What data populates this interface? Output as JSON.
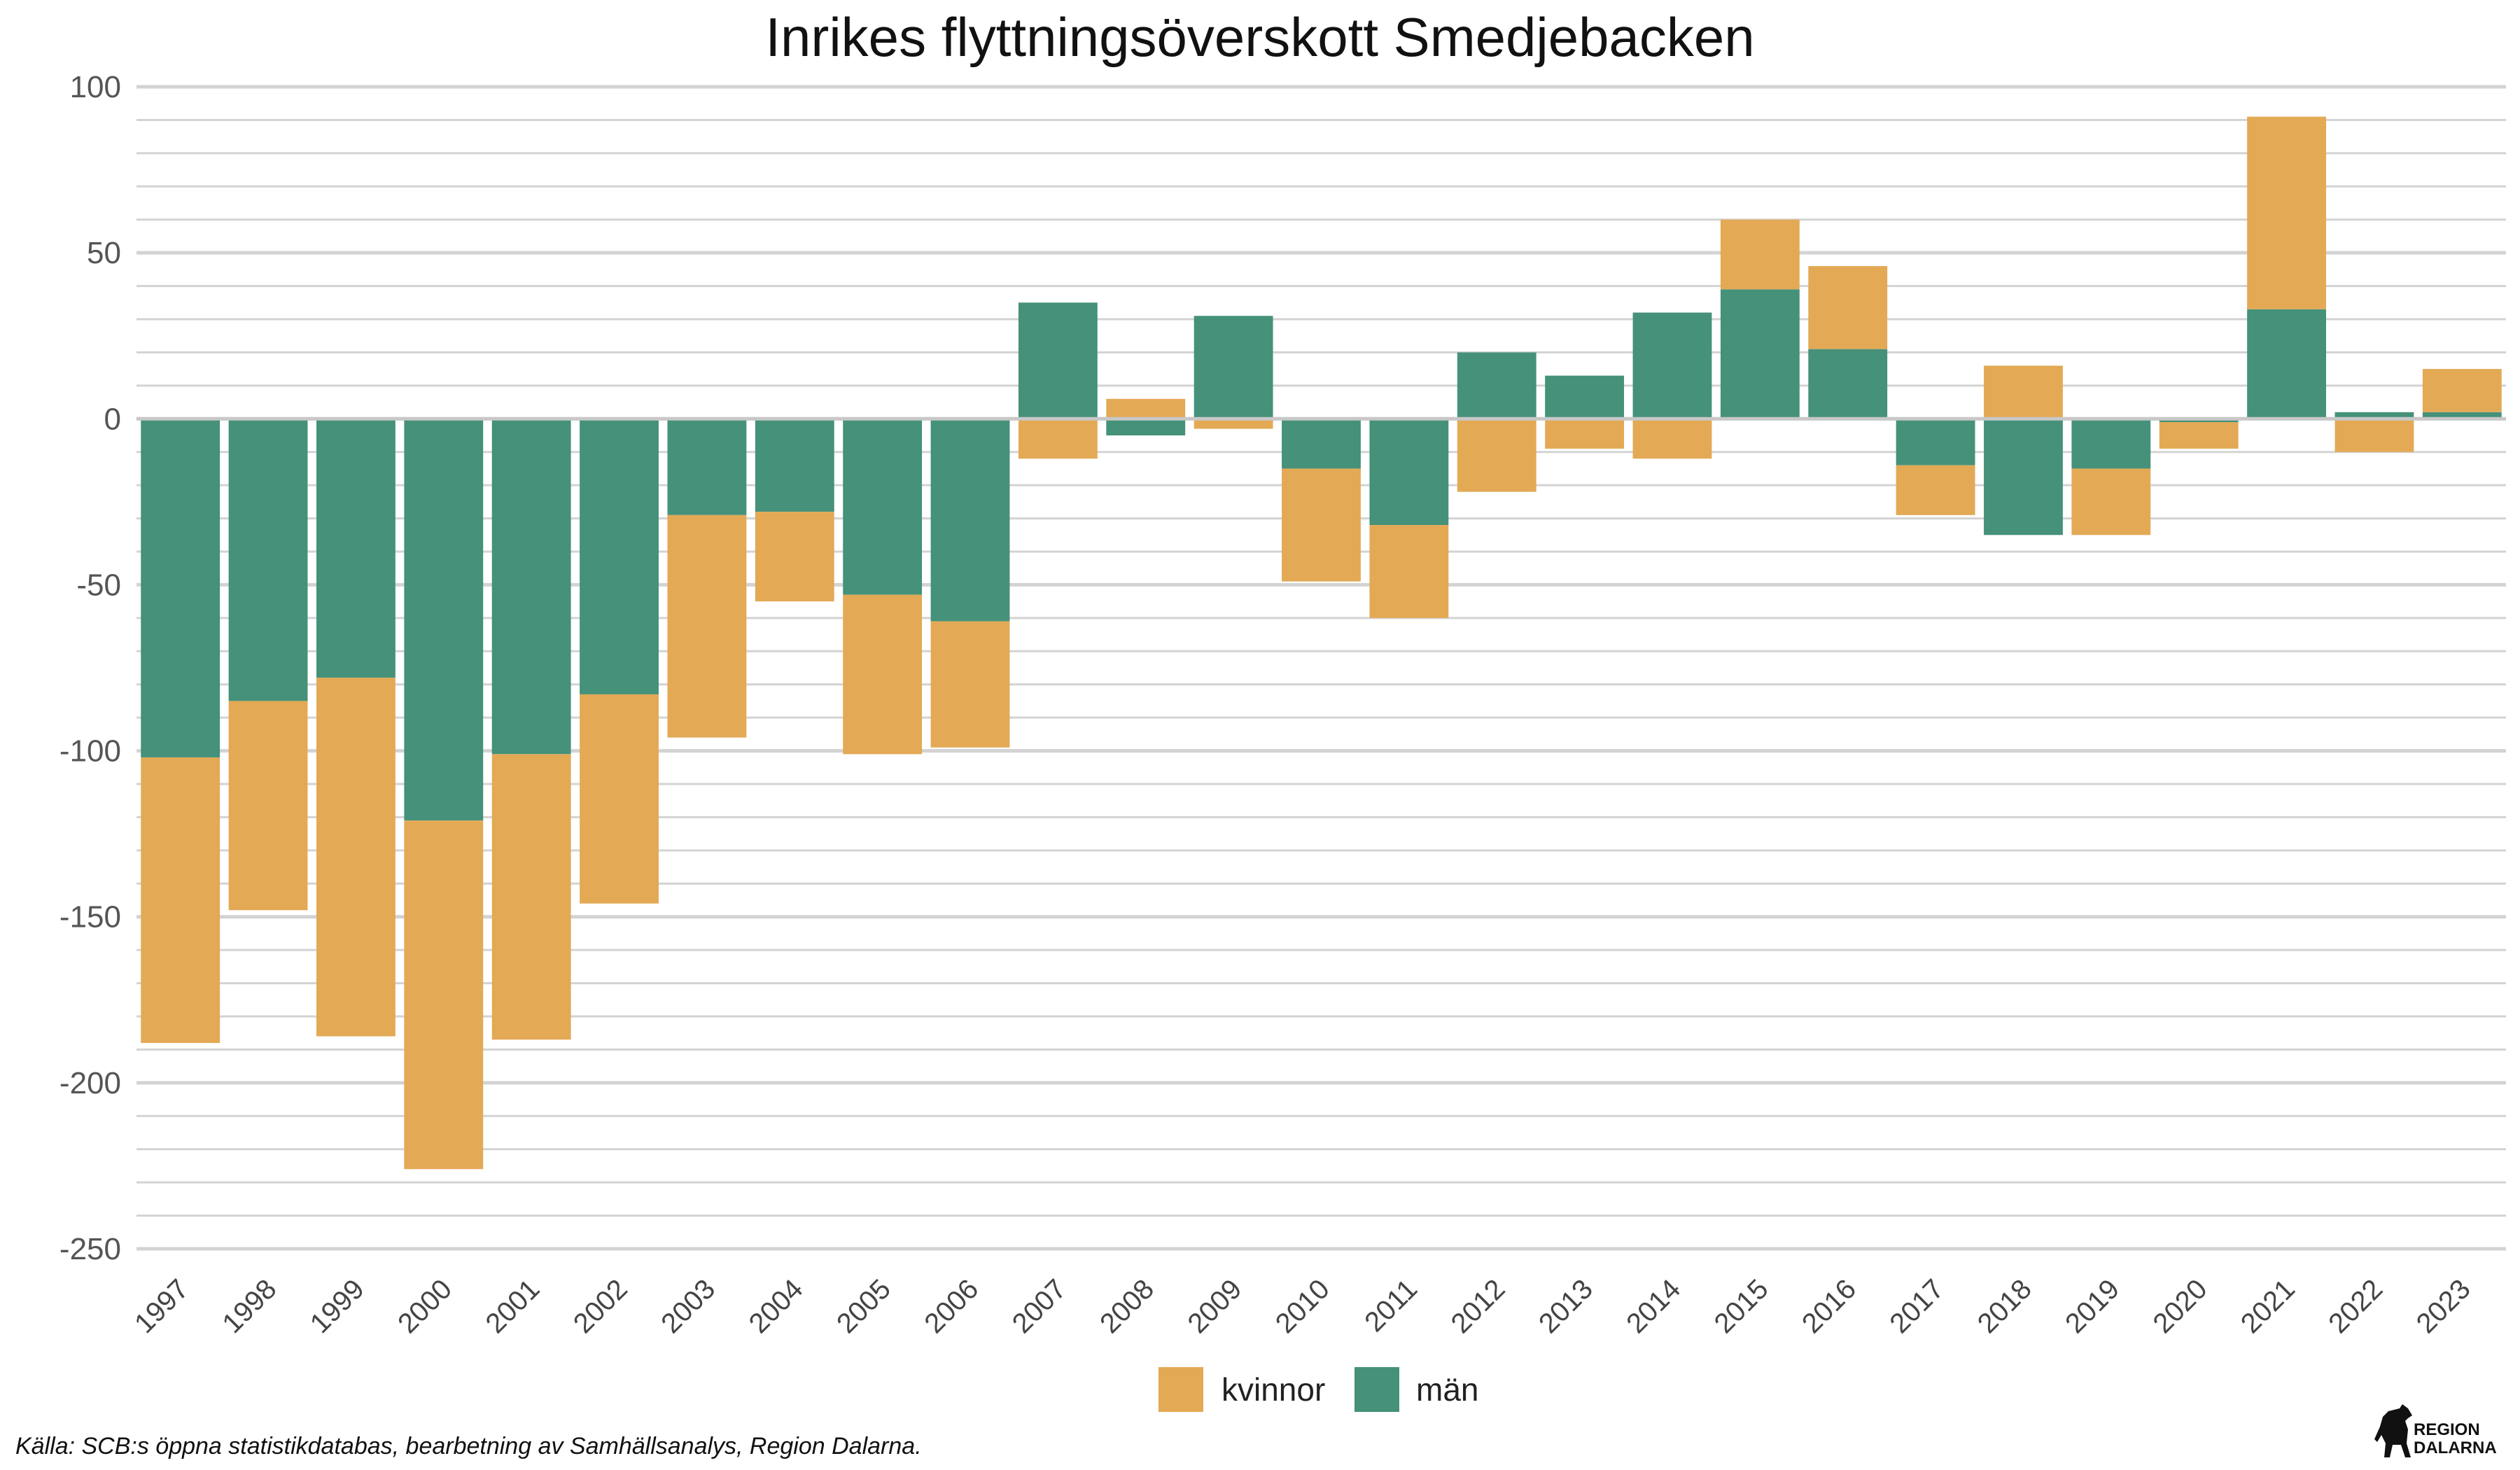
{
  "chart_data": {
    "type": "bar",
    "stacked": "diverging",
    "title": "Inrikes flyttningsöverskott Smedjebacken",
    "xlabel": "",
    "ylabel": "",
    "ylim": [
      -250,
      100
    ],
    "yticks": [
      100,
      50,
      0,
      -50,
      -100,
      -150,
      -200,
      -250
    ],
    "grid": true,
    "legend_position": "bottom",
    "categories": [
      "1997",
      "1998",
      "1999",
      "2000",
      "2001",
      "2002",
      "2003",
      "2004",
      "2005",
      "2006",
      "2007",
      "2008",
      "2009",
      "2010",
      "2011",
      "2012",
      "2013",
      "2014",
      "2015",
      "2016",
      "2017",
      "2018",
      "2019",
      "2020",
      "2021",
      "2022",
      "2023"
    ],
    "series": [
      {
        "name": "män",
        "color": "#45917a",
        "values": [
          -102,
          -85,
          -78,
          -121,
          -101,
          -83,
          -29,
          -28,
          -53,
          -61,
          35,
          -5,
          31,
          -15,
          -32,
          20,
          13,
          32,
          39,
          21,
          -14,
          -35,
          -15,
          -1,
          33,
          2,
          2
        ]
      },
      {
        "name": "kvinnor",
        "color": "#e3a955",
        "values": [
          -86,
          -63,
          -108,
          -105,
          -86,
          -63,
          -67,
          -27,
          -48,
          -38,
          -12,
          6,
          -3,
          -34,
          -28,
          -22,
          -9,
          -12,
          21,
          25,
          -15,
          16,
          -20,
          -8,
          58,
          -10,
          13
        ]
      }
    ],
    "legend": [
      {
        "label": "kvinnor",
        "color": "#e3a955"
      },
      {
        "label": "män",
        "color": "#45917a"
      }
    ]
  },
  "caption": "Källa: SCB:s öppna statistikdatabas, bearbetning av Samhällsanalys, Region Dalarna.",
  "logo": {
    "line1": "REGION",
    "line2": "DALARNA"
  },
  "colors": {
    "grid": "#d3d3d3",
    "zero_line": "#c8c8c8"
  }
}
